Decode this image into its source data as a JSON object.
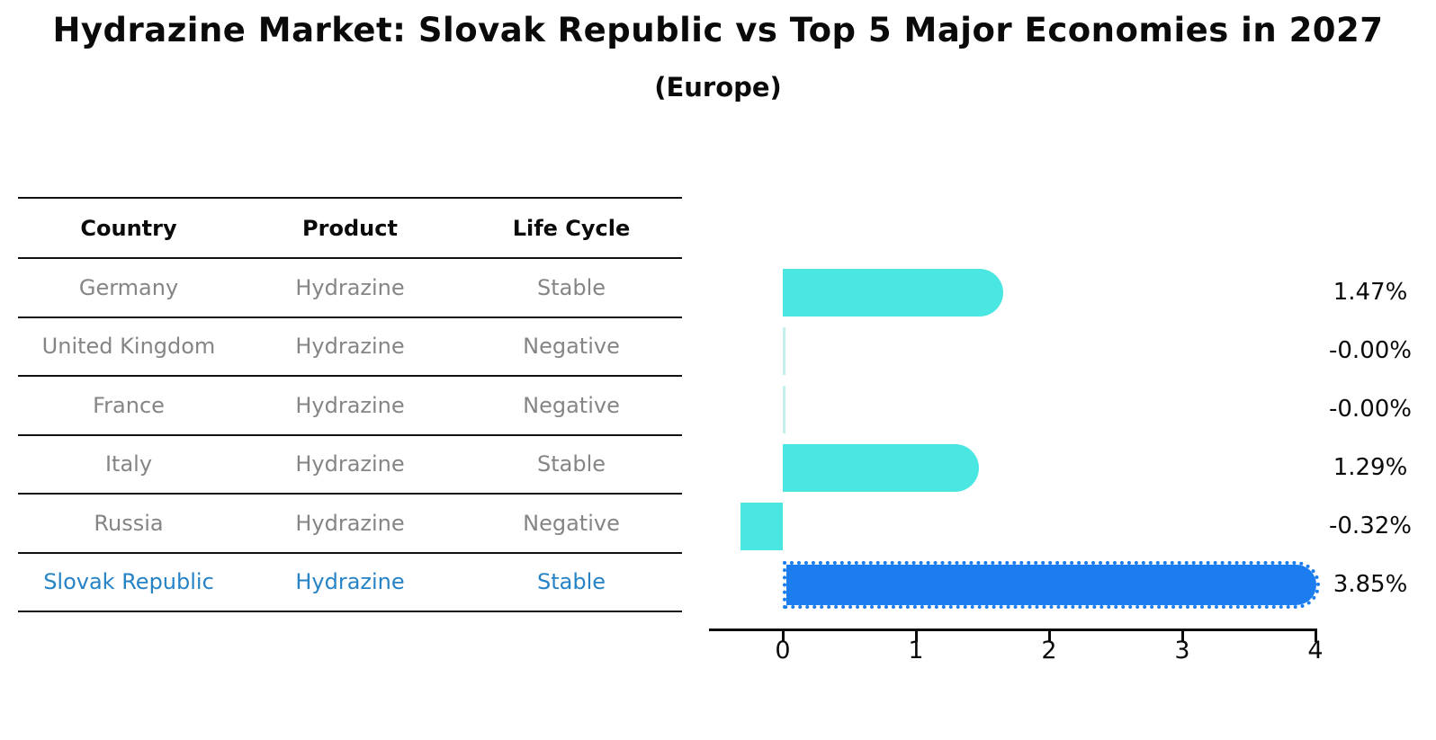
{
  "title": "Hydrazine Market: Slovak Republic vs Top 5 Major Economies in 2027",
  "subtitle": "(Europe)",
  "table": {
    "headers": [
      "Country",
      "Product",
      "Life Cycle"
    ],
    "rows": [
      {
        "country": "Germany",
        "product": "Hydrazine",
        "life_cycle": "Stable",
        "highlight": false
      },
      {
        "country": "United Kingdom",
        "product": "Hydrazine",
        "life_cycle": "Negative",
        "highlight": false
      },
      {
        "country": "France",
        "product": "Hydrazine",
        "life_cycle": "Negative",
        "highlight": false
      },
      {
        "country": "Italy",
        "product": "Hydrazine",
        "life_cycle": "Stable",
        "highlight": false
      },
      {
        "country": "Russia",
        "product": "Hydrazine",
        "life_cycle": "Negative",
        "highlight": false
      },
      {
        "country": "Slovak Republic",
        "product": "Hydrazine",
        "life_cycle": "Stable",
        "highlight": true
      }
    ]
  },
  "chart_data": {
    "type": "bar",
    "orientation": "horizontal",
    "title": "Hydrazine Market: Slovak Republic vs Top 5 Major Economies in 2027 (Europe)",
    "categories": [
      "Germany",
      "United Kingdom",
      "France",
      "Italy",
      "Russia",
      "Slovak Republic"
    ],
    "values": [
      1.47,
      -0.0,
      -0.0,
      1.29,
      -0.32,
      3.85
    ],
    "value_labels": [
      "1.47%",
      "-0.00%",
      "-0.00%",
      "1.29%",
      "-0.32%",
      "3.85%"
    ],
    "xticks": [
      "0",
      "1",
      "2",
      "3",
      "4"
    ],
    "xlim": [
      -0.57,
      4
    ],
    "grid": false,
    "legend": "none",
    "bar_color": "#4ae6e2",
    "highlight_bar_color": "#1c7df0",
    "highlight_index": 5
  },
  "colors": {
    "background": "#ffffff",
    "table_text": "#858585",
    "highlight_text": "#2583c6",
    "axis": "#0a0a0a"
  }
}
